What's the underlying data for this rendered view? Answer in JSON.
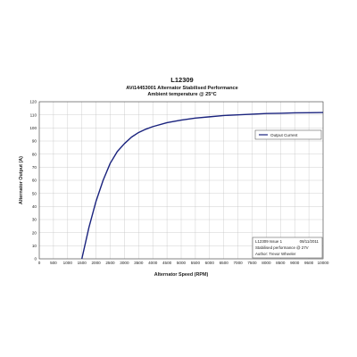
{
  "chart_data": {
    "type": "line",
    "title": "L12309",
    "subtitle": "AVi14453001 Alternator Stabilised Performance",
    "subtitle2": "Ambient temperature @ 25°C",
    "xlabel": "Alternator Speed (RPM)",
    "ylabel": "Alternator Output (A)",
    "xlim": [
      0,
      10000
    ],
    "ylim": [
      0,
      120
    ],
    "xticks": [
      "0",
      "500",
      "1000",
      "1500",
      "2000",
      "2500",
      "3000",
      "3500",
      "4000",
      "4500",
      "5000",
      "5500",
      "6000",
      "6500",
      "7000",
      "7500",
      "8000",
      "8500",
      "9000",
      "9500",
      "10000"
    ],
    "yticks": [
      "0",
      "10",
      "20",
      "30",
      "40",
      "50",
      "60",
      "70",
      "80",
      "90",
      "100",
      "110",
      "120"
    ],
    "grid": true,
    "legend_position": "right",
    "series_color": "#1a237e",
    "series": [
      {
        "name": "Output Current",
        "x": [
          1500,
          1750,
          2000,
          2250,
          2500,
          2750,
          3000,
          3250,
          3500,
          3750,
          4000,
          4500,
          5000,
          5500,
          6000,
          6500,
          7000,
          7500,
          8000,
          8500,
          9000,
          9500,
          10000
        ],
        "y": [
          0,
          24,
          44,
          60,
          73,
          82,
          88,
          93,
          96.5,
          99,
          101,
          104,
          106,
          107.5,
          108.5,
          109.5,
          110,
          110.5,
          111,
          111.2,
          111.5,
          111.6,
          111.8
        ]
      }
    ],
    "info_box": {
      "line1_left": "L12309 Issue 1",
      "line1_right": "08/11/2011",
      "line2": "Stabilised performance @ 27V",
      "line3": "Author: Trevor Wheeler"
    }
  }
}
